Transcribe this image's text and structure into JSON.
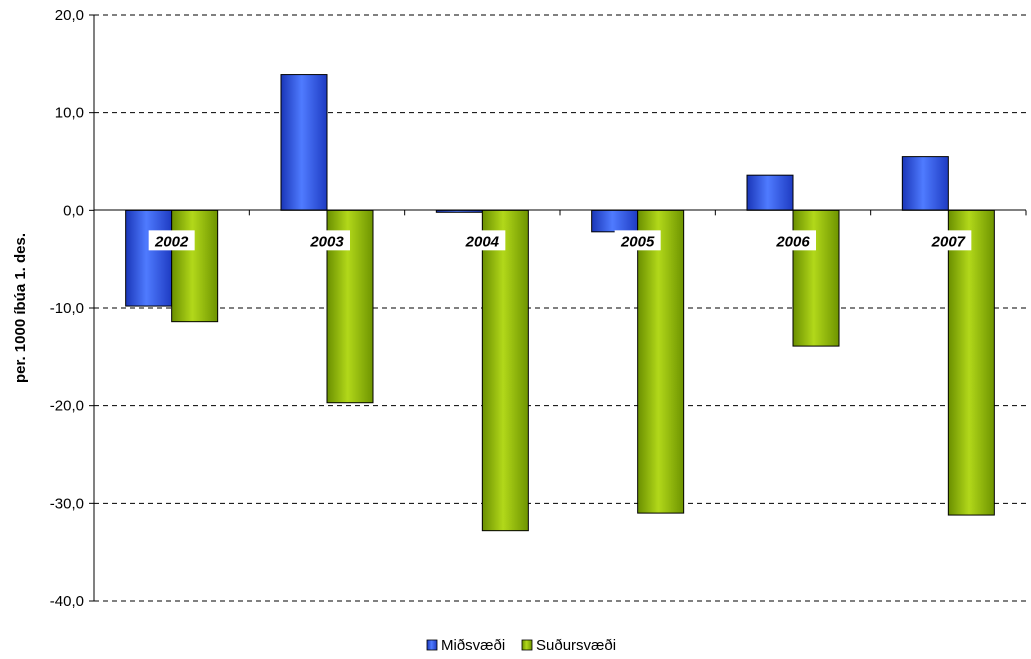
{
  "chart_data": {
    "type": "bar",
    "categories": [
      "2002",
      "2003",
      "2004",
      "2005",
      "2006",
      "2007"
    ],
    "series": [
      {
        "name": "Miðsvæði",
        "values": [
          -9.8,
          13.9,
          -0.2,
          -2.2,
          3.6,
          5.5
        ],
        "color": "#2f55e6"
      },
      {
        "name": "Suðursvæði",
        "values": [
          -11.4,
          -19.7,
          -32.8,
          -31.0,
          -13.9,
          -31.2
        ],
        "color": "#8fbf00"
      }
    ],
    "title": "",
    "xlabel": "",
    "ylabel": "per. 1000 íbúa 1. des.",
    "ylim": [
      -40,
      20
    ],
    "yticks": [
      20,
      10,
      0,
      -10,
      -20,
      -30,
      -40
    ],
    "ytick_labels": [
      "20,0",
      "10,0",
      "0,0",
      "-10,0",
      "-20,0",
      "-30,0",
      "-40,0"
    ],
    "grid": true,
    "legend_position": "bottom"
  }
}
